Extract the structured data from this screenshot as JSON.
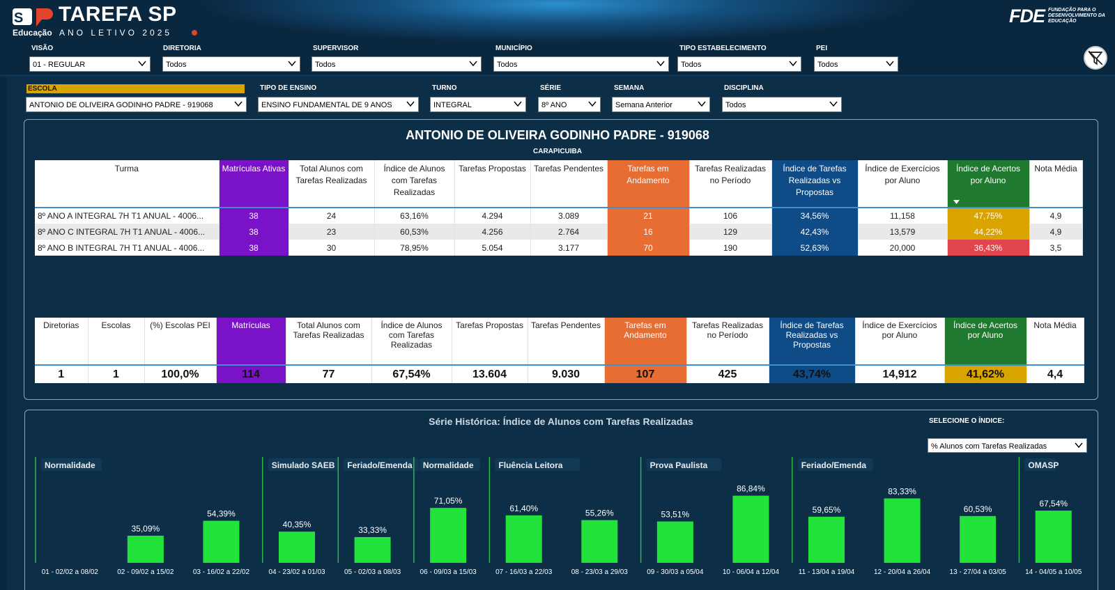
{
  "header": {
    "brand": "TAREFA SP",
    "educacao": "Educação",
    "ano_letivo": "ANO LETIVO 2025",
    "fde_mark": "FDE",
    "fde_text": "FUNDAÇÃO PARA O DESENVOLVIMENTO DA EDUCAÇÃO"
  },
  "filters_row1": [
    {
      "label": "VISÃO",
      "value": "01 - REGULAR"
    },
    {
      "label": "DIRETORIA",
      "value": "Todos"
    },
    {
      "label": "SUPERVISOR",
      "value": "Todos"
    },
    {
      "label": "MUNICÍPIO",
      "value": "Todos"
    },
    {
      "label": "TIPO ESTABELECIMENTO",
      "value": "Todos"
    },
    {
      "label": "PEI",
      "value": "Todos"
    }
  ],
  "filters_row2": [
    {
      "label": "ESCOLA",
      "value": "ANTONIO DE OLIVEIRA GODINHO PADRE - 919068"
    },
    {
      "label": "TIPO DE ENSINO",
      "value": "ENSINO FUNDAMENTAL DE 9 ANOS"
    },
    {
      "label": "TURNO",
      "value": "INTEGRAL"
    },
    {
      "label": "SÉRIE",
      "value": "8º ANO"
    },
    {
      "label": "SEMANA",
      "value": "Semana Anterior"
    },
    {
      "label": "DISCIPLINA",
      "value": "Todos"
    }
  ],
  "school": {
    "title": "ANTONIO DE OLIVEIRA GODINHO PADRE - 919068",
    "city": "CARAPICUIBA"
  },
  "turma_table": {
    "headers": [
      "Turma",
      "Matrículas Ativas",
      "Total Alunos com Tarefas Realizadas",
      "Índice de Alunos com Tarefas Realizadas",
      "Tarefas Propostas",
      "Tarefas Pendentes",
      "Tarefas em Andamento",
      "Tarefas Realizadas no Período",
      "Índice de Tarefas Realizadas vs Propostas",
      "Índice de Exercícios por Aluno",
      "Índice de Acertos por Aluno",
      "Nota Média"
    ],
    "rows": [
      [
        "8º ANO A INTEGRAL 7H T1 ANUAL - 4006...",
        "38",
        "24",
        "63,16%",
        "4.294",
        "3.089",
        "21",
        "106",
        "34,56%",
        "11,158",
        "47,75%",
        "4,9"
      ],
      [
        "8º ANO C INTEGRAL 7H T1 ANUAL - 4006...",
        "38",
        "23",
        "60,53%",
        "4.256",
        "2.764",
        "16",
        "129",
        "42,43%",
        "13,579",
        "44,22%",
        "4,9"
      ],
      [
        "8º ANO B INTEGRAL 7H T1 ANUAL - 4006...",
        "38",
        "30",
        "78,95%",
        "5.054",
        "3.177",
        "70",
        "190",
        "52,63%",
        "20,000",
        "36,43%",
        "3,5"
      ]
    ],
    "acertos_colors": [
      "yellow",
      "yellow",
      "red"
    ]
  },
  "totals_table": {
    "headers": [
      "Diretorias",
      "Escolas",
      "(%) Escolas PEI",
      "Matrículas",
      "Total Alunos com Tarefas Realizadas",
      "Índice de Alunos com Tarefas Realizadas",
      "Tarefas Propostas",
      "Tarefas Pendentes",
      "Tarefas em Andamento",
      "Tarefas Realizadas no Período",
      "Índice de Tarefas Realizadas vs Propostas",
      "Índice de Exercícios por Aluno",
      "Índice de Acertos por Aluno",
      "Nota Média"
    ],
    "values": [
      "1",
      "1",
      "100,0%",
      "114",
      "77",
      "67,54%",
      "13.604",
      "9.030",
      "107",
      "425",
      "43,74%",
      "14,912",
      "41,62%",
      "4,4"
    ]
  },
  "serie": {
    "title": "Série Histórica: Índice de Alunos com Tarefas Realizadas",
    "select_label": "SELECIONE O ÍNDICE:",
    "select_value": "% Alunos com Tarefas Realizadas"
  },
  "chart_data": {
    "type": "bar",
    "title": "Série Histórica: Índice de Alunos com Tarefas Realizadas",
    "categories": [
      "01 - 02/02 a 08/02",
      "02 - 09/02 a 15/02",
      "03 - 16/02 a 22/02",
      "04 - 23/02 a 01/03",
      "05 - 02/03 a 08/03",
      "06 - 09/03 a 15/03",
      "07 - 16/03 a 22/03",
      "08 - 23/03 a 29/03",
      "09 - 30/03 a 05/04",
      "10 - 06/04 a 12/04",
      "11 - 13/04 a 19/04",
      "12 - 20/04 a 26/04",
      "13 - 27/04 a 03/05",
      "14 - 04/05 a 10/05"
    ],
    "values": [
      null,
      35.09,
      54.39,
      40.35,
      33.33,
      71.05,
      61.4,
      55.26,
      53.51,
      86.84,
      59.65,
      83.33,
      60.53,
      67.54
    ],
    "labels": [
      "",
      "35,09%",
      "54,39%",
      "40,35%",
      "33,33%",
      "71,05%",
      "61,40%",
      "55,26%",
      "53,51%",
      "86,84%",
      "59,65%",
      "83,33%",
      "60,53%",
      "67,54%"
    ],
    "ylim": [
      0,
      100
    ],
    "bar_color": "#22e33a",
    "events": [
      {
        "index": 0,
        "label": "Normalidade"
      },
      {
        "index": 3,
        "label": "Simulado SAEB"
      },
      {
        "index": 4,
        "label": "Feriado/Emenda"
      },
      {
        "index": 5,
        "label": "Normalidade"
      },
      {
        "index": 6,
        "label": "Fluência Leitora"
      },
      {
        "index": 8,
        "label": "Prova Paulista"
      },
      {
        "index": 10,
        "label": "Feriado/Emenda"
      },
      {
        "index": 13,
        "label": "OMASP"
      }
    ]
  }
}
